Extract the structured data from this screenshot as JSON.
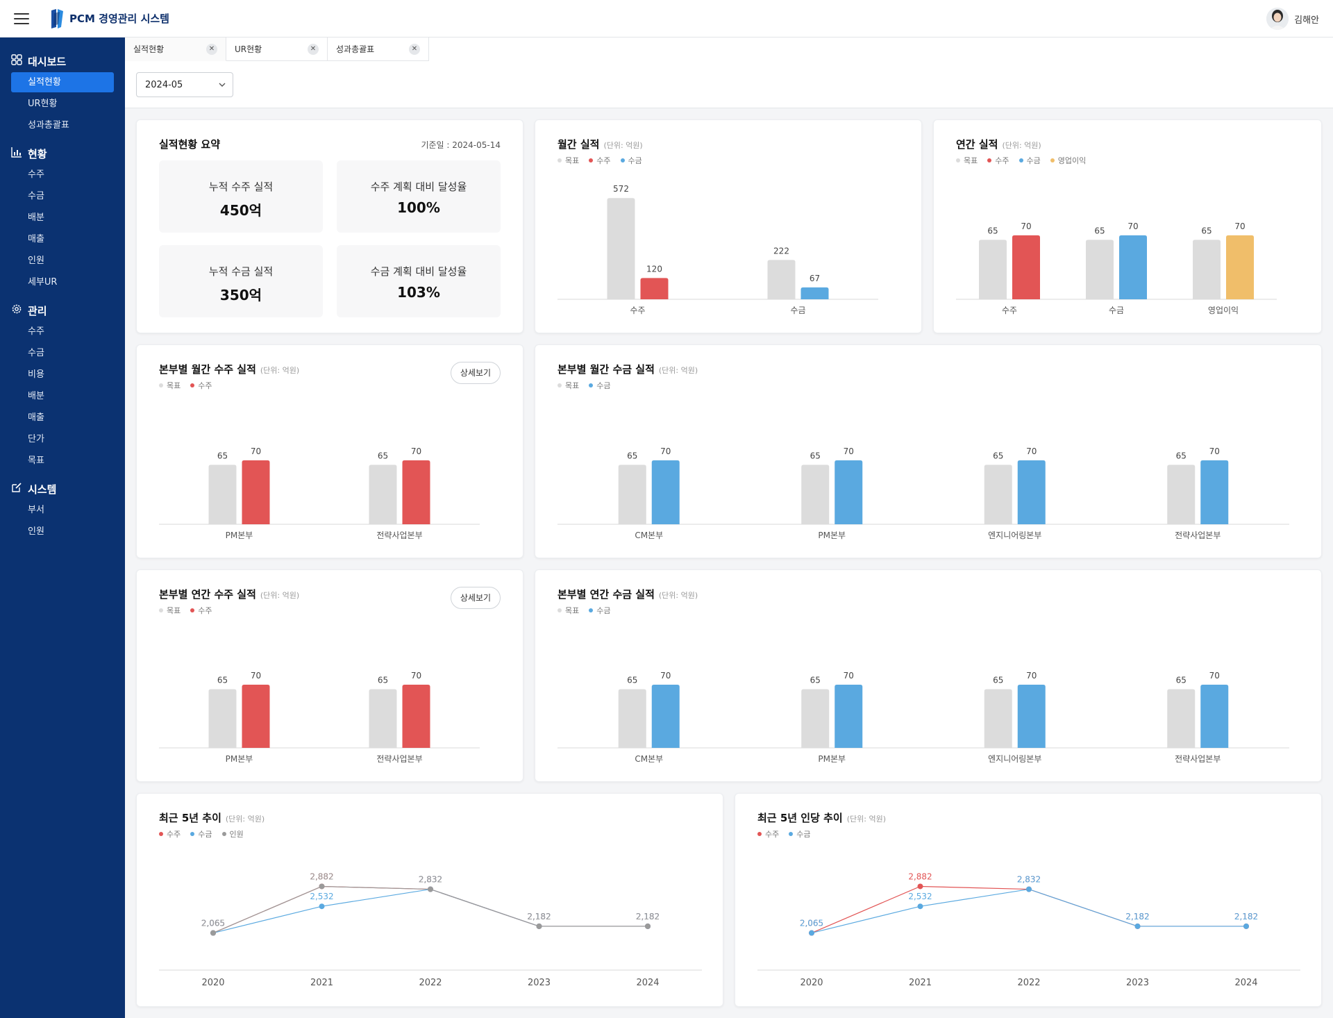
{
  "app": {
    "title": "PCM 경영관리 시스템",
    "user_name": "김해안"
  },
  "sidebar": {
    "sections": [
      {
        "title": "대시보드",
        "icon": "grid-icon",
        "items": [
          "실적현황",
          "UR현황",
          "성과총괄표"
        ]
      },
      {
        "title": "현황",
        "icon": "bar-chart-icon",
        "items": [
          "수주",
          "수금",
          "배분",
          "매출",
          "인원",
          "세부UR"
        ]
      },
      {
        "title": "관리",
        "icon": "gear-icon",
        "items": [
          "수주",
          "수금",
          "비용",
          "배분",
          "매출",
          "단가",
          "목표"
        ]
      },
      {
        "title": "시스템",
        "icon": "edit-icon",
        "items": [
          "부서",
          "인원"
        ]
      }
    ],
    "active_item": "실적현황"
  },
  "tabs": [
    {
      "label": "실적현황",
      "active": true
    },
    {
      "label": "UR현황",
      "active": false
    },
    {
      "label": "성과총괄표",
      "active": false
    }
  ],
  "filter": {
    "period": "2024-05"
  },
  "colors": {
    "target": "#dcdcdc",
    "order": "#e25555",
    "collection": "#5aa9e0",
    "profit": "#f0be6a",
    "headcount": "#9a9a9a"
  },
  "summary": {
    "title": "실적현황 요약",
    "ref_date": "기준일 : 2024-05-14",
    "kpis": [
      {
        "label": "누적 수주 실적",
        "value": "450억"
      },
      {
        "label": "수주 계획 대비 달성율",
        "value": "100%"
      },
      {
        "label": "누적 수금 실적",
        "value": "350억"
      },
      {
        "label": "수금 계획 대비 달성율",
        "value": "103%"
      }
    ]
  },
  "unit_label": "(단위: 억원)",
  "detail_button": "상세보기",
  "chart_data": [
    {
      "id": "monthly",
      "type": "bar",
      "title": "월간 실적",
      "legend": [
        {
          "name": "목표",
          "color": "#dcdcdc"
        },
        {
          "name": "수주",
          "color": "#e25555"
        },
        {
          "name": "수금",
          "color": "#5aa9e0"
        }
      ],
      "categories": [
        "수주",
        "수금"
      ],
      "groups": [
        {
          "category": "수주",
          "bars": [
            {
              "series": "목표",
              "value": 572
            },
            {
              "series": "수주",
              "value": 120
            }
          ]
        },
        {
          "category": "수금",
          "bars": [
            {
              "series": "목표",
              "value": 222
            },
            {
              "series": "수금",
              "value": 67
            }
          ]
        }
      ],
      "ylim": [
        0,
        620
      ]
    },
    {
      "id": "annual",
      "type": "bar",
      "title": "연간 실적",
      "legend": [
        {
          "name": "목표",
          "color": "#dcdcdc"
        },
        {
          "name": "수주",
          "color": "#e25555"
        },
        {
          "name": "수금",
          "color": "#5aa9e0"
        },
        {
          "name": "영업이익",
          "color": "#f0be6a"
        }
      ],
      "categories": [
        "수주",
        "수금",
        "영업이익"
      ],
      "groups": [
        {
          "category": "수주",
          "bars": [
            {
              "series": "목표",
              "value": 65
            },
            {
              "series": "수주",
              "value": 70
            }
          ]
        },
        {
          "category": "수금",
          "bars": [
            {
              "series": "목표",
              "value": 65
            },
            {
              "series": "수금",
              "value": 70
            }
          ]
        },
        {
          "category": "영업이익",
          "bars": [
            {
              "series": "목표",
              "value": 65
            },
            {
              "series": "영업이익",
              "value": 70
            }
          ]
        }
      ],
      "ylim": [
        0,
        120
      ]
    },
    {
      "id": "dept_monthly_order",
      "type": "bar",
      "title": "본부별 월간 수주 실적",
      "legend": [
        {
          "name": "목표",
          "color": "#dcdcdc"
        },
        {
          "name": "수주",
          "color": "#e25555"
        }
      ],
      "categories": [
        "PM본부",
        "전략사업본부"
      ],
      "series": [
        {
          "name": "목표",
          "values": [
            65,
            65
          ]
        },
        {
          "name": "수주",
          "values": [
            70,
            70
          ]
        }
      ],
      "ylim": [
        0,
        120
      ]
    },
    {
      "id": "dept_monthly_collection",
      "type": "bar",
      "title": "본부별 월간 수금 실적",
      "legend": [
        {
          "name": "목표",
          "color": "#dcdcdc"
        },
        {
          "name": "수금",
          "color": "#5aa9e0"
        }
      ],
      "categories": [
        "CM본부",
        "PM본부",
        "엔지니어링본부",
        "전략사업본부"
      ],
      "series": [
        {
          "name": "목표",
          "values": [
            65,
            65,
            65,
            65
          ]
        },
        {
          "name": "수금",
          "values": [
            70,
            70,
            70,
            70
          ]
        }
      ],
      "ylim": [
        0,
        120
      ]
    },
    {
      "id": "dept_annual_order",
      "type": "bar",
      "title": "본부별 연간 수주 실적",
      "legend": [
        {
          "name": "목표",
          "color": "#dcdcdc"
        },
        {
          "name": "수주",
          "color": "#e25555"
        }
      ],
      "categories": [
        "PM본부",
        "전략사업본부"
      ],
      "series": [
        {
          "name": "목표",
          "values": [
            65,
            65
          ]
        },
        {
          "name": "수주",
          "values": [
            70,
            70
          ]
        }
      ],
      "ylim": [
        0,
        120
      ]
    },
    {
      "id": "dept_annual_collection",
      "type": "bar",
      "title": "본부별 연간 수금 실적",
      "legend": [
        {
          "name": "목표",
          "color": "#dcdcdc"
        },
        {
          "name": "수금",
          "color": "#5aa9e0"
        }
      ],
      "categories": [
        "CM본부",
        "PM본부",
        "엔지니어링본부",
        "전략사업본부"
      ],
      "series": [
        {
          "name": "목표",
          "values": [
            65,
            65,
            65,
            65
          ]
        },
        {
          "name": "수금",
          "values": [
            70,
            70,
            70,
            70
          ]
        }
      ],
      "ylim": [
        0,
        120
      ]
    },
    {
      "id": "trend5",
      "type": "line",
      "title": "최근 5년 추이",
      "legend": [
        {
          "name": "수주",
          "color": "#e25555"
        },
        {
          "name": "수금",
          "color": "#5aa9e0"
        },
        {
          "name": "인원",
          "color": "#9a9a9a"
        }
      ],
      "x": [
        "2020",
        "2021",
        "2022",
        "2023",
        "2024"
      ],
      "series": [
        {
          "name": "수주",
          "values": [
            2065,
            2882,
            2832,
            2182,
            2182
          ]
        },
        {
          "name": "수금",
          "values": [
            2065,
            2532,
            2832,
            2182,
            2182
          ]
        },
        {
          "name": "인원",
          "values": [
            2065,
            2882,
            2832,
            2182,
            2182
          ]
        }
      ]
    },
    {
      "id": "trend5_per_capita",
      "type": "line",
      "title": "최근 5년 인당 추이",
      "legend": [
        {
          "name": "수주",
          "color": "#e25555"
        },
        {
          "name": "수금",
          "color": "#5aa9e0"
        }
      ],
      "x": [
        "2020",
        "2021",
        "2022",
        "2023",
        "2024"
      ],
      "series": [
        {
          "name": "수주",
          "values": [
            2065,
            2882,
            2832,
            2182,
            2182
          ]
        },
        {
          "name": "수금",
          "values": [
            2065,
            2532,
            2832,
            2182,
            2182
          ]
        }
      ]
    }
  ]
}
